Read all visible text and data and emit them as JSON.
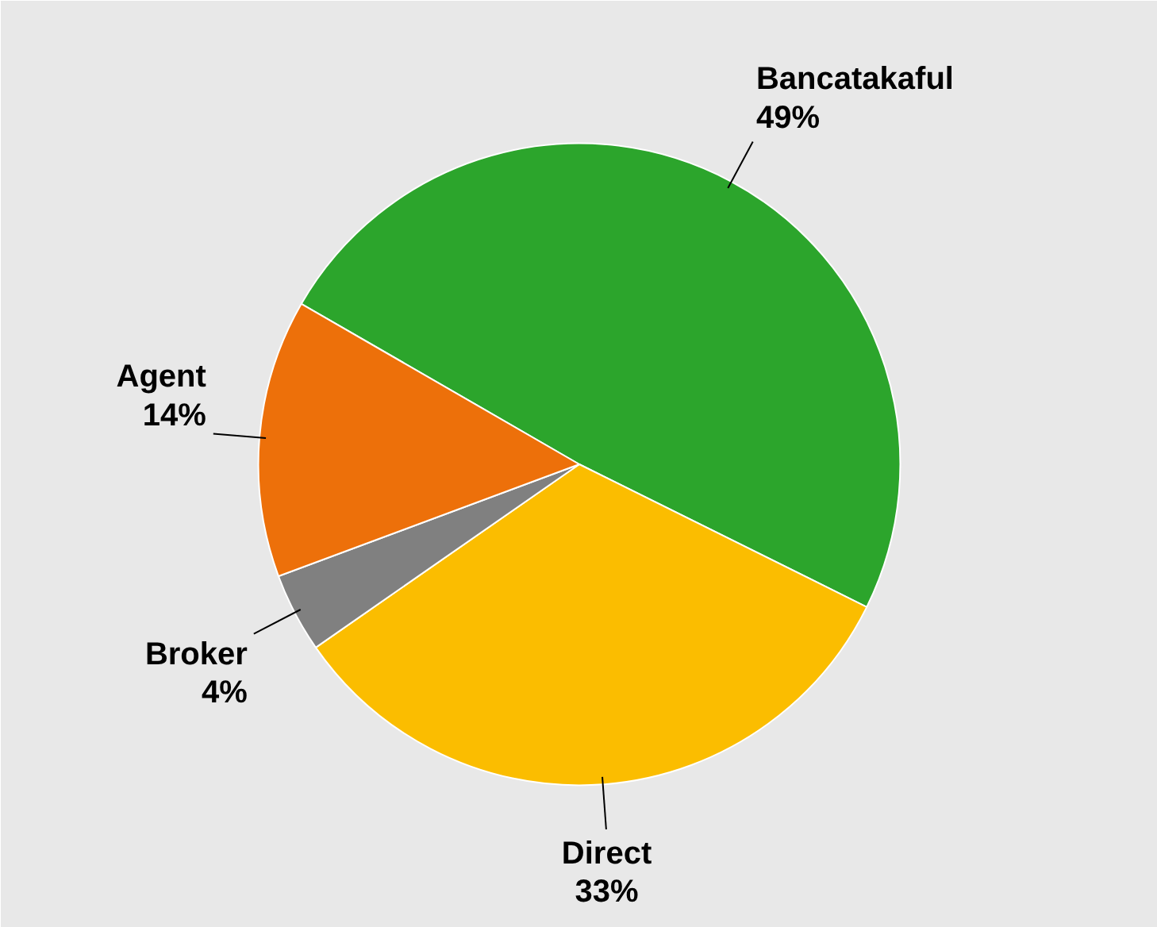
{
  "chart_data": {
    "type": "pie",
    "categories": [
      "Bancatakaful",
      "Direct",
      "Broker",
      "Agent"
    ],
    "values": [
      49,
      33,
      4,
      14
    ],
    "colors": [
      "#2ca52c",
      "#fbbd00",
      "#808080",
      "#ed700a"
    ],
    "value_labels": [
      "49%",
      "33%",
      "4%",
      "14%"
    ]
  }
}
